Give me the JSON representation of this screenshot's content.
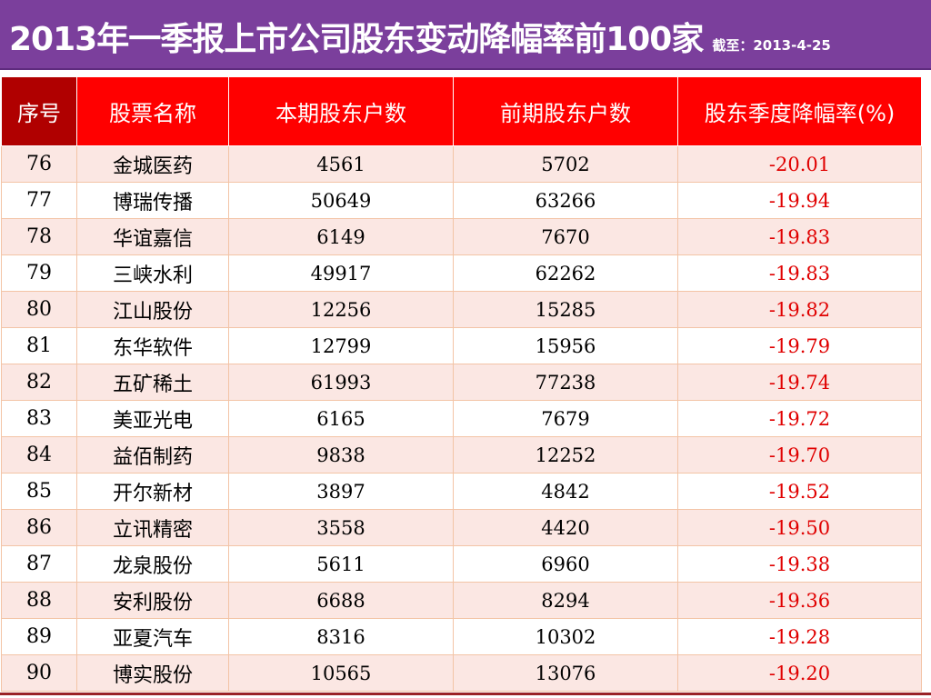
{
  "header": {
    "title": "2013年一季报上市公司股东变动降幅率前100家",
    "subtitle": "截至：2013-4-25"
  },
  "table": {
    "columns": [
      "序号",
      "股票名称",
      "本期股东户数",
      "前期股东户数",
      "股东季度降幅率(%)"
    ],
    "rows": [
      {
        "idx": "76",
        "name": "金城医药",
        "current": "4561",
        "previous": "5702",
        "rate": "-20.01"
      },
      {
        "idx": "77",
        "name": "博瑞传播",
        "current": "50649",
        "previous": "63266",
        "rate": "-19.94"
      },
      {
        "idx": "78",
        "name": "华谊嘉信",
        "current": "6149",
        "previous": "7670",
        "rate": "-19.83"
      },
      {
        "idx": "79",
        "name": "三峡水利",
        "current": "49917",
        "previous": "62262",
        "rate": "-19.83"
      },
      {
        "idx": "80",
        "name": "江山股份",
        "current": "12256",
        "previous": "15285",
        "rate": "-19.82"
      },
      {
        "idx": "81",
        "name": "东华软件",
        "current": "12799",
        "previous": "15956",
        "rate": "-19.79"
      },
      {
        "idx": "82",
        "name": "五矿稀土",
        "current": "61993",
        "previous": "77238",
        "rate": "-19.74"
      },
      {
        "idx": "83",
        "name": "美亚光电",
        "current": "6165",
        "previous": "7679",
        "rate": "-19.72"
      },
      {
        "idx": "84",
        "name": "益佰制药",
        "current": "9838",
        "previous": "12252",
        "rate": "-19.70"
      },
      {
        "idx": "85",
        "name": "开尔新材",
        "current": "3897",
        "previous": "4842",
        "rate": "-19.52"
      },
      {
        "idx": "86",
        "name": "立讯精密",
        "current": "3558",
        "previous": "4420",
        "rate": "-19.50"
      },
      {
        "idx": "87",
        "name": "龙泉股份",
        "current": "5611",
        "previous": "6960",
        "rate": "-19.38"
      },
      {
        "idx": "88",
        "name": "安利股份",
        "current": "6688",
        "previous": "8294",
        "rate": "-19.36"
      },
      {
        "idx": "89",
        "name": "亚夏汽车",
        "current": "8316",
        "previous": "10302",
        "rate": "-19.28"
      },
      {
        "idx": "90",
        "name": "博实股份",
        "current": "10565",
        "previous": "13076",
        "rate": "-19.20"
      }
    ]
  },
  "colors": {
    "title_bg": "#7b3f9c",
    "header_bg": "#ff0000",
    "header_idx_bg": "#b00000",
    "rate_text": "#e00000",
    "odd_row_bg": "#fbe7e3"
  }
}
